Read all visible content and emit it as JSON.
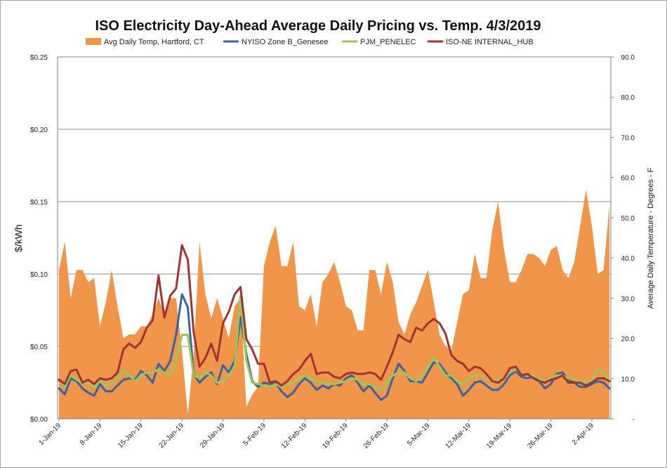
{
  "chart_data": {
    "type": "line",
    "title": "ISO Electricity Day-Ahead Average Daily Pricing vs. Temp. 4/3/2019",
    "ylabel": "$/kWh",
    "y2label": "Average Daily Temperature - Degrees - F",
    "ylim": [
      0,
      0.25
    ],
    "y2lim": [
      0,
      90
    ],
    "yticks": [
      "$0.00",
      "$0.05",
      "$0.10",
      "$0.15",
      "$0.20",
      "$0.25"
    ],
    "yticks2": [
      "-",
      "10.0",
      "20.0",
      "30.0",
      "40.0",
      "50.0",
      "60.0",
      "70.0",
      "80.0",
      "90.0"
    ],
    "x_tick_labels": [
      "1-Jan-19",
      "8-Jan-19",
      "15-Jan-19",
      "22-Jan-19",
      "29-Jan-19",
      "5-Feb-19",
      "12-Feb-19",
      "19-Feb-19",
      "26-Feb-19",
      "5-Mar-19",
      "12-Mar-19",
      "19-Mar-19",
      "26-Mar-19",
      "2-Apr-19"
    ],
    "x_tick_every_days": 7,
    "grid": true,
    "legend_position": "top",
    "series": [
      {
        "name": "Avg Daily Temp, Hartford, CT",
        "type": "area",
        "axis": "right",
        "color": "#f0954a",
        "values": [
          37,
          44,
          30,
          37,
          37,
          34,
          35,
          23,
          29,
          37,
          28,
          20,
          21,
          21,
          23,
          23,
          26,
          30,
          26,
          30,
          30,
          17,
          1,
          16,
          44,
          31,
          25,
          30,
          25,
          20,
          28,
          30,
          3,
          6,
          8,
          38,
          44,
          48,
          38,
          38,
          44,
          28,
          27,
          31,
          23,
          34,
          36,
          39,
          34,
          28,
          27,
          22,
          22,
          37,
          37,
          31,
          39,
          34,
          24,
          21,
          26,
          29,
          33,
          37,
          29,
          21,
          18,
          17,
          24,
          31,
          32,
          41,
          35,
          35,
          47,
          54,
          42,
          34,
          34,
          37,
          41,
          41,
          40,
          38,
          42,
          43,
          37,
          35,
          39,
          48,
          57,
          48,
          36,
          37,
          53
        ]
      },
      {
        "name": "NYISO Zone B_Genesee",
        "type": "line",
        "axis": "left",
        "color": "#3a63a0",
        "values": [
          0.021,
          0.017,
          0.028,
          0.026,
          0.021,
          0.018,
          0.016,
          0.024,
          0.019,
          0.019,
          0.023,
          0.027,
          0.028,
          0.027,
          0.033,
          0.03,
          0.025,
          0.038,
          0.033,
          0.04,
          0.058,
          0.086,
          0.077,
          0.031,
          0.025,
          0.029,
          0.032,
          0.024,
          0.037,
          0.032,
          0.04,
          0.07,
          0.045,
          0.026,
          0.022,
          0.025,
          0.024,
          0.025,
          0.019,
          0.015,
          0.018,
          0.024,
          0.028,
          0.025,
          0.02,
          0.023,
          0.021,
          0.024,
          0.023,
          0.028,
          0.03,
          0.025,
          0.019,
          0.023,
          0.018,
          0.013,
          0.016,
          0.028,
          0.038,
          0.033,
          0.026,
          0.026,
          0.025,
          0.032,
          0.039,
          0.038,
          0.032,
          0.028,
          0.024,
          0.016,
          0.02,
          0.025,
          0.026,
          0.023,
          0.02,
          0.02,
          0.024,
          0.03,
          0.033,
          0.029,
          0.028,
          0.029,
          0.026,
          0.021,
          0.024,
          0.031,
          0.032,
          0.027,
          0.025,
          0.022,
          0.022,
          0.024,
          0.026,
          0.025,
          0.021
        ]
      },
      {
        "name": "PJM_PENELEC",
        "type": "line",
        "axis": "left",
        "color": "#9bc85a",
        "values": [
          0.026,
          0.022,
          0.03,
          0.027,
          0.025,
          0.024,
          0.022,
          0.026,
          0.023,
          0.025,
          0.028,
          0.033,
          0.03,
          0.026,
          0.03,
          0.032,
          0.032,
          0.034,
          0.032,
          0.03,
          0.04,
          0.058,
          0.058,
          0.03,
          0.028,
          0.032,
          0.03,
          0.025,
          0.026,
          0.03,
          0.036,
          0.085,
          0.04,
          0.025,
          0.024,
          0.023,
          0.022,
          0.024,
          0.022,
          0.024,
          0.025,
          0.028,
          0.03,
          0.028,
          0.026,
          0.025,
          0.024,
          0.024,
          0.025,
          0.026,
          0.028,
          0.027,
          0.024,
          0.024,
          0.022,
          0.02,
          0.025,
          0.03,
          0.032,
          0.032,
          0.028,
          0.026,
          0.03,
          0.036,
          0.042,
          0.036,
          0.03,
          0.03,
          0.026,
          0.024,
          0.028,
          0.03,
          0.03,
          0.028,
          0.026,
          0.027,
          0.028,
          0.032,
          0.034,
          0.032,
          0.03,
          0.03,
          0.028,
          0.026,
          0.028,
          0.03,
          0.03,
          0.028,
          0.027,
          0.026,
          0.025,
          0.026,
          0.034,
          0.032,
          0.026
        ]
      },
      {
        "name": "ISO-NE INTERNAL_HUB",
        "type": "line",
        "axis": "left",
        "color": "#a3332f",
        "values": [
          0.027,
          0.024,
          0.033,
          0.034,
          0.025,
          0.027,
          0.024,
          0.028,
          0.027,
          0.028,
          0.032,
          0.048,
          0.052,
          0.049,
          0.053,
          0.063,
          0.068,
          0.099,
          0.07,
          0.085,
          0.09,
          0.12,
          0.11,
          0.06,
          0.036,
          0.042,
          0.052,
          0.04,
          0.066,
          0.074,
          0.086,
          0.091,
          0.055,
          0.048,
          0.038,
          0.038,
          0.025,
          0.026,
          0.023,
          0.026,
          0.031,
          0.034,
          0.04,
          0.045,
          0.031,
          0.032,
          0.032,
          0.029,
          0.028,
          0.031,
          0.032,
          0.031,
          0.031,
          0.032,
          0.031,
          0.027,
          0.036,
          0.046,
          0.058,
          0.055,
          0.053,
          0.063,
          0.061,
          0.066,
          0.069,
          0.066,
          0.059,
          0.044,
          0.04,
          0.038,
          0.033,
          0.036,
          0.035,
          0.031,
          0.026,
          0.025,
          0.028,
          0.035,
          0.036,
          0.03,
          0.031,
          0.028,
          0.026,
          0.025,
          0.027,
          0.028,
          0.03,
          0.025,
          0.025,
          0.025,
          0.023,
          0.025,
          0.028,
          0.028,
          0.026
        ]
      }
    ]
  }
}
